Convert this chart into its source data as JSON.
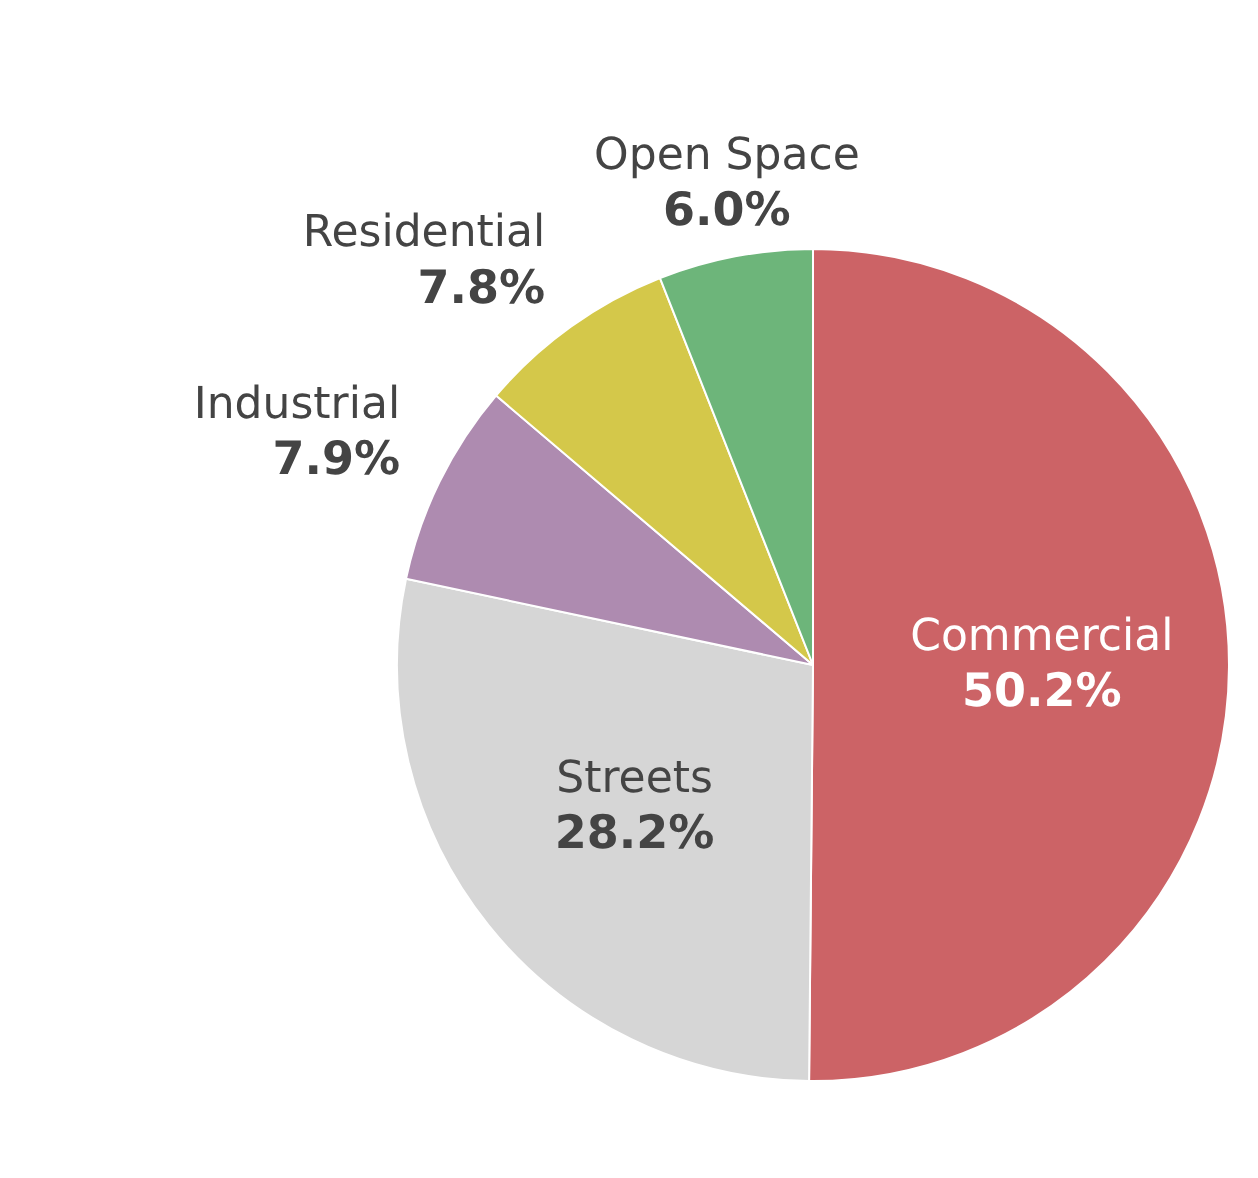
{
  "chart_data": {
    "type": "pie",
    "categories": [
      "Commercial",
      "Streets",
      "Industrial",
      "Residential",
      "Open Space"
    ],
    "values": [
      50.2,
      28.2,
      7.9,
      7.8,
      6.0
    ],
    "colors": [
      "#cc6366",
      "#d6d6d6",
      "#ae8bb0",
      "#d4c84a",
      "#6db57a"
    ],
    "value_labels": [
      "50.2%",
      "28.2%",
      "7.9%",
      "7.8%",
      "6.0%"
    ],
    "legend": false
  }
}
